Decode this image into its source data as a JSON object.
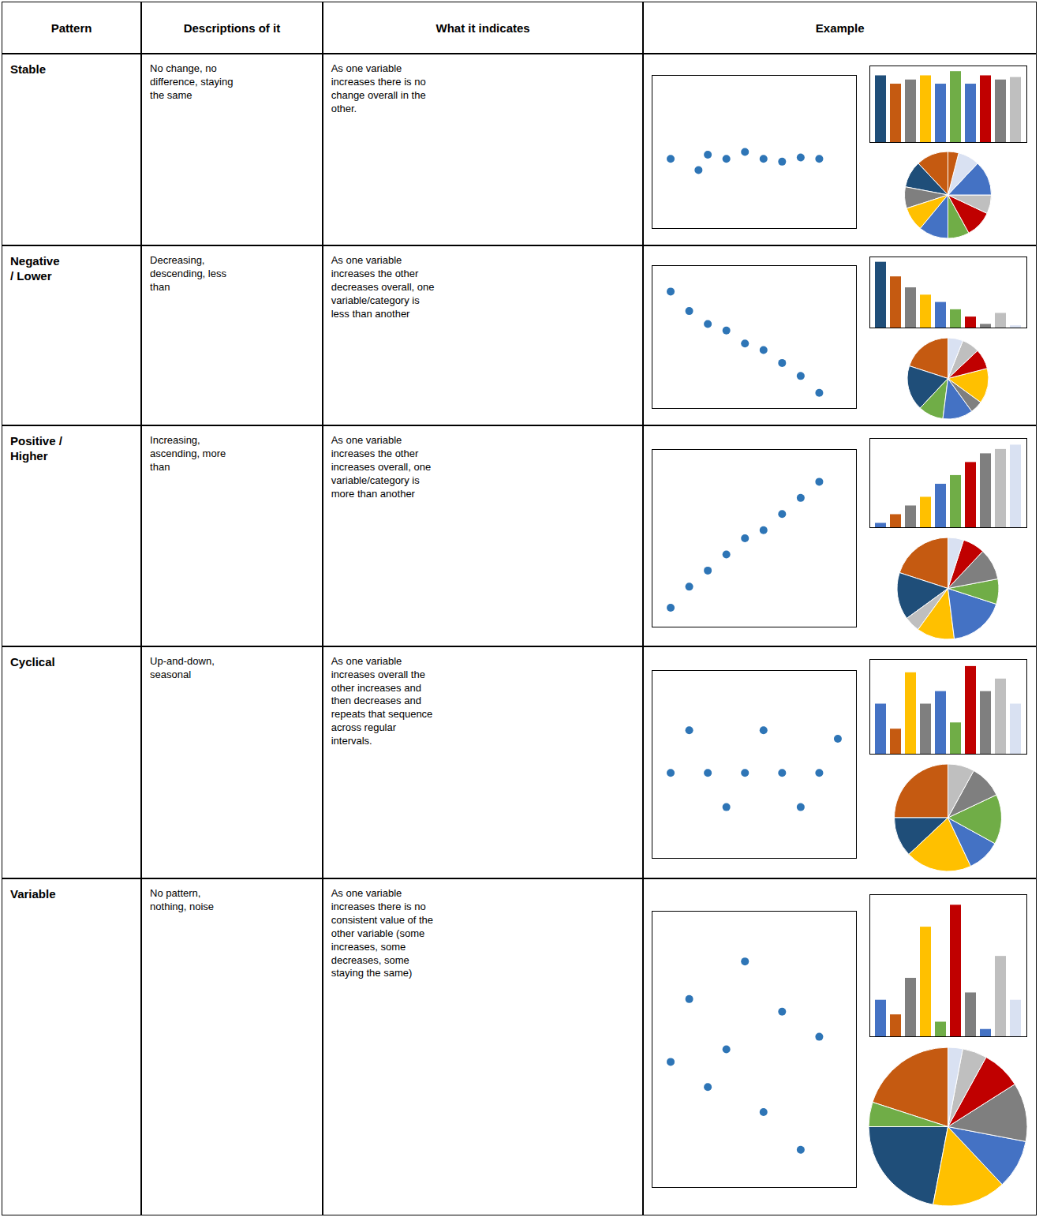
{
  "table": {
    "header": [
      "Pattern",
      "Descriptions of it",
      "What it indicates",
      "Example"
    ],
    "rows": [
      [
        "Stable",
        "No change, no\ndifference, staying\nthe same",
        "As one variable\nincreases there is no\nchange overall in the\nother."
      ],
      [
        "Negative\n/ Lower",
        "Decreasing,\ndescending, less\nthan",
        "As one variable\nincreases the other\ndecreases overall, one\nvariable/category is\nless than another"
      ],
      [
        "Positive /\nHigher",
        "Increasing,\nascending, more\nthan",
        "As one variable\nincreases the other\nincreases overall, one\nvariable/category is\nmore than another"
      ],
      [
        "Cyclical",
        "Up-and-down,\nseasonal",
        "As one variable\nincreases overall the\nother increases and\nthen decreases and\nrepeats that sequence\nacross regular\nintervals."
      ],
      [
        "Variable",
        "No pattern,\nnothing, noise",
        "As one variable\nincreases there is no\nconsistent value of the\nother variable (some\nincreases, some\ndecreases, some\nstaying the same)"
      ]
    ]
  },
  "chart_data": [
    {
      "type": "scatter",
      "x": [
        1,
        2.5,
        3,
        4,
        5,
        6,
        7,
        8,
        9
      ],
      "values": [
        5.0,
        4.2,
        5.3,
        5.0,
        5.5,
        5.0,
        4.8,
        5.1,
        5.0
      ],
      "color": "#2e75b6",
      "xlim": [
        0,
        11
      ],
      "ylim": [
        0,
        11
      ],
      "xticks": [],
      "yticks": [],
      "tick_labels": false
    },
    {
      "type": "bar",
      "values": [
        8,
        7,
        7.5,
        8,
        7,
        8.5,
        7,
        8,
        7.5,
        7.8
      ],
      "colors": [
        "#1f4e79",
        "#c55a11",
        "#7f7f7f",
        "#ffc000",
        "#4472c4",
        "#70ad47",
        "#4472c4",
        "#c00000",
        "#7f7f7f",
        "#bfbfbf"
      ],
      "ylim": [
        0,
        9.18
      ],
      "yticks": [],
      "tick_labels": false
    },
    {
      "type": "pie",
      "values": [
        12,
        10,
        8,
        9,
        11,
        8,
        10,
        7,
        13,
        8,
        4
      ],
      "colors": [
        "#c55a11",
        "#1f4e79",
        "#7f7f7f",
        "#ffc000",
        "#4472c4",
        "#70ad47",
        "#c00000",
        "#bfbfbf",
        "#4472c4",
        "#d9e1f2",
        "#c55a11"
      ]
    },
    {
      "type": "scatter",
      "x": [
        1,
        2,
        3,
        4,
        5,
        6,
        7,
        8,
        9
      ],
      "values": [
        9.0,
        7.5,
        6.5,
        6.0,
        5.0,
        4.5,
        3.5,
        2.5,
        1.2
      ],
      "color": "#2e75b6",
      "xlim": [
        0,
        11
      ],
      "ylim": [
        0,
        11
      ],
      "xticks": [],
      "yticks": [],
      "tick_labels": false
    },
    {
      "type": "bar",
      "values": [
        9,
        7,
        5.5,
        4.5,
        3.5,
        2.5,
        1.5,
        0.5,
        2.0,
        0.3
      ],
      "colors": [
        "#1f4e79",
        "#c55a11",
        "#7f7f7f",
        "#ffc000",
        "#4472c4",
        "#70ad47",
        "#c00000",
        "#7f7f7f",
        "#bfbfbf",
        "#d9e1f2"
      ],
      "ylim": [
        0,
        9.72
      ],
      "yticks": [],
      "tick_labels": false
    },
    {
      "type": "pie",
      "values": [
        20,
        18,
        10,
        12,
        5,
        14,
        8,
        7,
        6
      ],
      "colors": [
        "#c55a11",
        "#1f4e79",
        "#70ad47",
        "#4472c4",
        "#7f7f7f",
        "#ffc000",
        "#c00000",
        "#bfbfbf",
        "#d9e1f2"
      ]
    },
    {
      "type": "scatter",
      "x": [
        1,
        2,
        3,
        4,
        5,
        6,
        7,
        8,
        9
      ],
      "values": [
        1.2,
        2.5,
        3.5,
        4.5,
        5.5,
        6.0,
        7.0,
        8.0,
        9.0
      ],
      "color": "#2e75b6",
      "xlim": [
        0,
        11
      ],
      "ylim": [
        0,
        11
      ],
      "xticks": [],
      "yticks": [],
      "tick_labels": false
    },
    {
      "type": "bar",
      "values": [
        0.5,
        1.5,
        2.5,
        3.5,
        5.0,
        6.0,
        7.5,
        8.5,
        9.0,
        9.5
      ],
      "colors": [
        "#4472c4",
        "#c55a11",
        "#7f7f7f",
        "#ffc000",
        "#4472c4",
        "#70ad47",
        "#c00000",
        "#7f7f7f",
        "#bfbfbf",
        "#d9e1f2"
      ],
      "ylim": [
        0,
        10.26
      ],
      "yticks": [],
      "tick_labels": false
    },
    {
      "type": "pie",
      "values": [
        20,
        15,
        5,
        12,
        18,
        8,
        10,
        7,
        5
      ],
      "colors": [
        "#c55a11",
        "#1f4e79",
        "#bfbfbf",
        "#ffc000",
        "#4472c4",
        "#70ad47",
        "#7f7f7f",
        "#c00000",
        "#d9e1f2"
      ]
    },
    {
      "type": "scatter",
      "x": [
        1,
        2,
        3,
        4,
        5,
        6,
        7,
        8,
        9,
        10
      ],
      "values": [
        5,
        7.5,
        5,
        3,
        5,
        7.5,
        5,
        3,
        5,
        7
      ],
      "color": "#2e75b6",
      "xlim": [
        0,
        11
      ],
      "ylim": [
        0,
        11
      ],
      "xticks": [],
      "yticks": [],
      "tick_labels": false
    },
    {
      "type": "bar",
      "values": [
        4,
        2,
        6.5,
        4,
        5,
        2.5,
        7,
        5,
        6,
        4
      ],
      "colors": [
        "#4472c4",
        "#c55a11",
        "#ffc000",
        "#7f7f7f",
        "#4472c4",
        "#70ad47",
        "#c00000",
        "#7f7f7f",
        "#bfbfbf",
        "#d9e1f2"
      ],
      "ylim": [
        0,
        7.56
      ],
      "yticks": [],
      "tick_labels": false
    },
    {
      "type": "pie",
      "values": [
        25,
        12,
        20,
        10,
        15,
        10,
        8
      ],
      "colors": [
        "#c55a11",
        "#1f4e79",
        "#ffc000",
        "#4472c4",
        "#70ad47",
        "#7f7f7f",
        "#bfbfbf"
      ]
    },
    {
      "type": "scatter",
      "x": [
        1,
        2,
        3,
        4,
        5,
        6,
        7,
        8,
        9
      ],
      "values": [
        5,
        7.5,
        4,
        5.5,
        9,
        3,
        7,
        1.5,
        6
      ],
      "color": "#2e75b6",
      "xlim": [
        0,
        11
      ],
      "ylim": [
        0,
        11
      ],
      "xticks": [],
      "yticks": [],
      "tick_labels": false
    },
    {
      "type": "bar",
      "values": [
        2.5,
        1.5,
        4,
        7.5,
        1,
        9,
        3,
        0.5,
        5.5,
        2.5
      ],
      "colors": [
        "#4472c4",
        "#c55a11",
        "#7f7f7f",
        "#ffc000",
        "#70ad47",
        "#c00000",
        "#7f7f7f",
        "#4472c4",
        "#bfbfbf",
        "#d9e1f2"
      ],
      "ylim": [
        0,
        9.72
      ],
      "yticks": [],
      "tick_labels": false
    },
    {
      "type": "pie",
      "values": [
        20,
        5,
        22,
        15,
        10,
        12,
        8,
        5,
        3
      ],
      "colors": [
        "#c55a11",
        "#70ad47",
        "#1f4e79",
        "#ffc000",
        "#4472c4",
        "#7f7f7f",
        "#c00000",
        "#bfbfbf",
        "#d9e1f2"
      ]
    }
  ]
}
